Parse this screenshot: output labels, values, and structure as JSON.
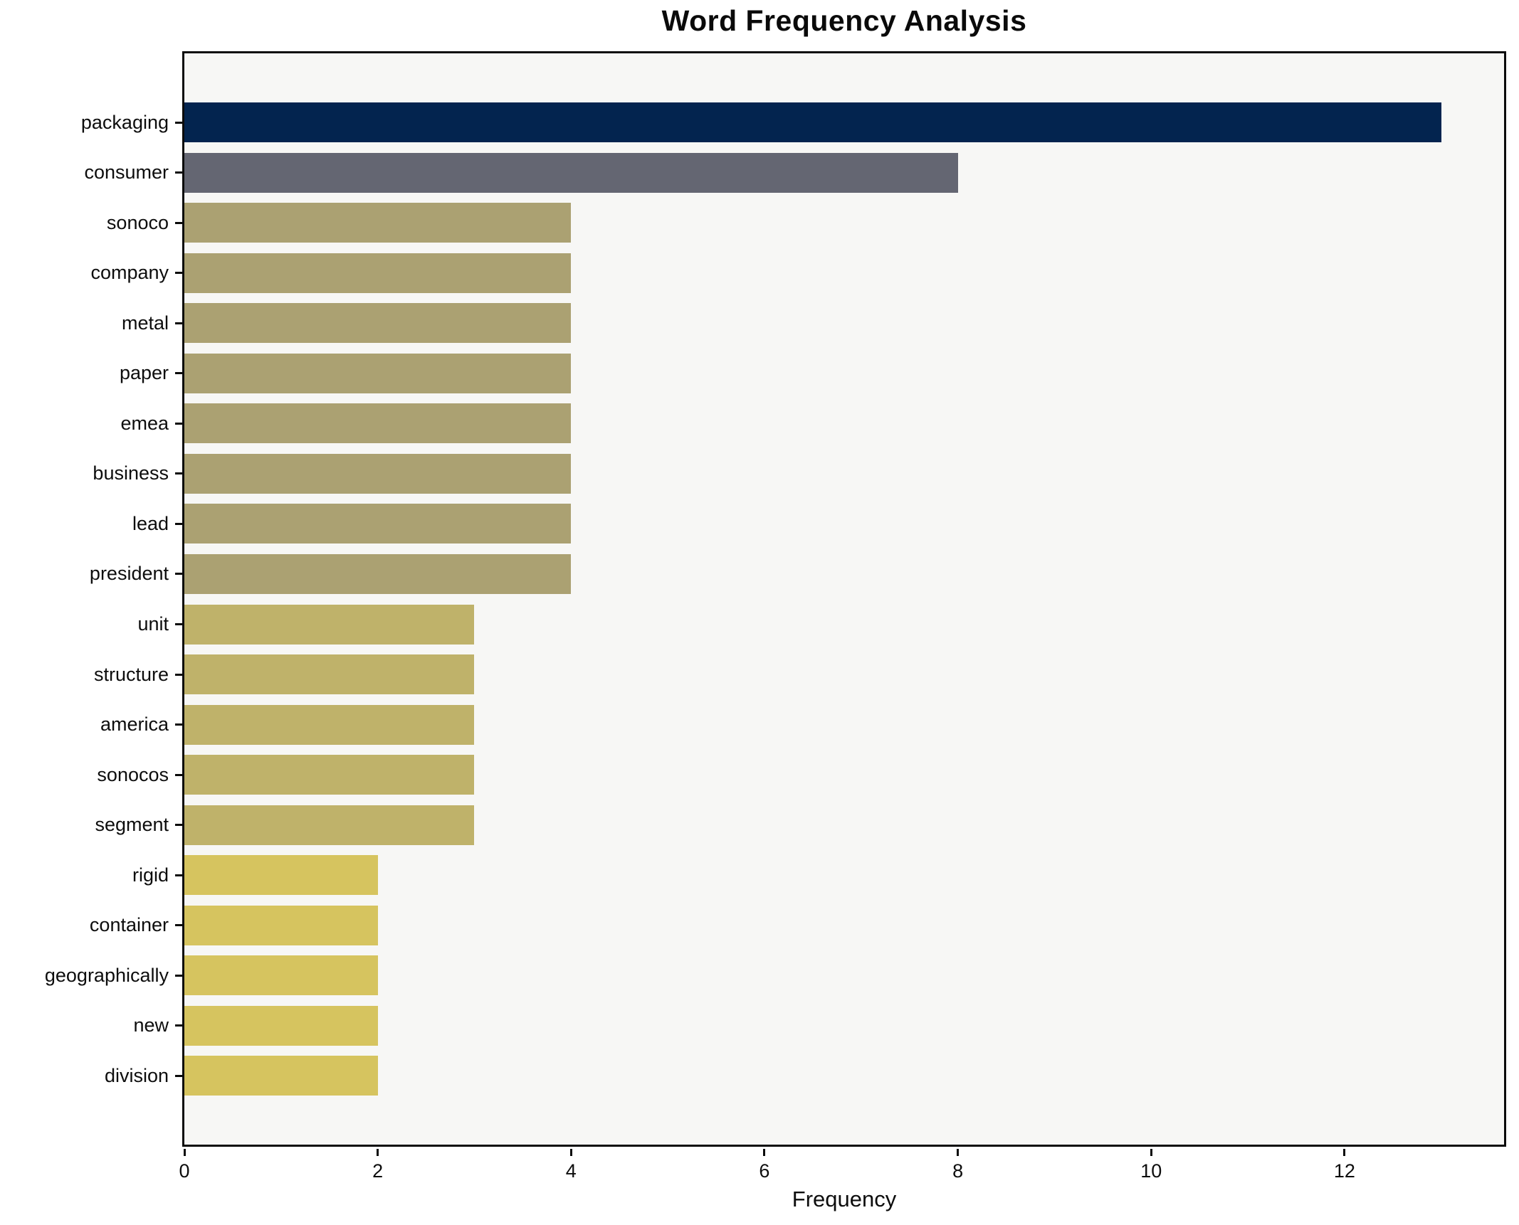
{
  "chart_data": {
    "type": "bar",
    "orientation": "horizontal",
    "title": "Word Frequency Analysis",
    "xlabel": "Frequency",
    "ylabel": "",
    "xlim": [
      0,
      13.65
    ],
    "x_ticks": [
      0,
      2,
      4,
      6,
      8,
      10,
      12
    ],
    "grid": false,
    "legend": "none",
    "plot_background": "#f7f7f5",
    "figure_background": "#ffffff",
    "spine_color": "#0b0b0b",
    "categories": [
      "packaging",
      "consumer",
      "sonoco",
      "company",
      "metal",
      "paper",
      "emea",
      "business",
      "lead",
      "president",
      "unit",
      "structure",
      "america",
      "sonocos",
      "segment",
      "rigid",
      "container",
      "geographically",
      "new",
      "division"
    ],
    "values": [
      13,
      8,
      4,
      4,
      4,
      4,
      4,
      4,
      4,
      4,
      3,
      3,
      3,
      3,
      3,
      2,
      2,
      2,
      2,
      2
    ],
    "bar_colors": [
      "#03244f",
      "#646672",
      "#aba172",
      "#aba172",
      "#aba172",
      "#aba172",
      "#aba172",
      "#aba172",
      "#aba172",
      "#aba172",
      "#bfb26a",
      "#bfb26a",
      "#bfb26a",
      "#bfb26a",
      "#bfb26a",
      "#d6c45f",
      "#d6c45f",
      "#d6c45f",
      "#d6c45f",
      "#d6c45f"
    ]
  }
}
